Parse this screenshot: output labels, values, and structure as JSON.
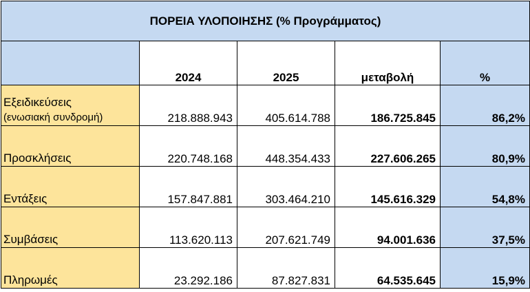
{
  "table": {
    "title": "ΠΟΡΕΙΑ  ΥΛΟΠΟΙΗΣΗΣ (% Προγράμματος)",
    "headers": [
      "",
      "2024",
      "2025",
      "μεταβολή",
      "%"
    ],
    "rows": [
      {
        "label": "Εξειδικεύσεις",
        "sublabel": "(ενωσιακή συνδρομή)",
        "y2024": "218.888.943",
        "y2025": "405.614.788",
        "change": "186.725.845",
        "pct": "86,2%"
      },
      {
        "label": "Προσκλήσεις",
        "y2024": "220.748.168",
        "y2025": "448.354.433",
        "change": "227.606.265",
        "pct": "80,9%"
      },
      {
        "label": "Εντάξεις",
        "y2024": "157.847.881",
        "y2025": "303.464.210",
        "change": "145.616.329",
        "pct": "54,8%"
      },
      {
        "label": "Συμβάσεις",
        "y2024": "113.620.113",
        "y2025": "207.621.749",
        "change": "94.001.636",
        "pct": "37,5%"
      },
      {
        "label": "Πληρωμές",
        "y2024": "23.292.186",
        "y2025": "87.827.831",
        "change": "64.535.645",
        "pct": "15,9%"
      }
    ]
  },
  "colors": {
    "header_blue": "#c5d9f1",
    "label_yellow": "#fde49b",
    "border": "#000000"
  }
}
